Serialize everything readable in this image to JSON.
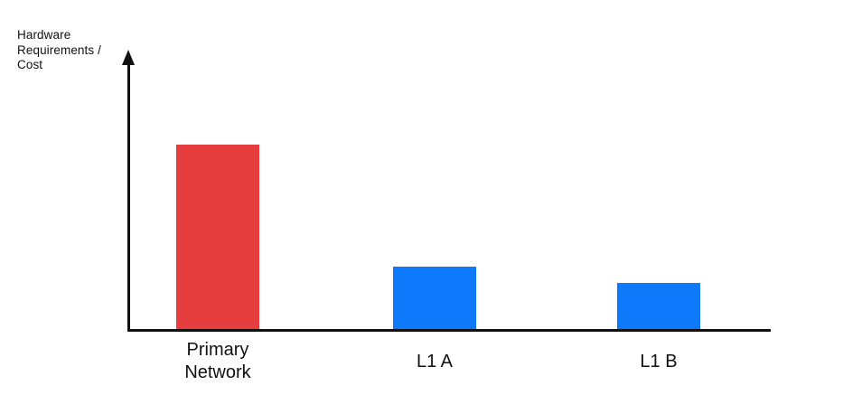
{
  "chart_data": {
    "type": "bar",
    "title": "",
    "xlabel": "",
    "ylabel": "Hardware Requirements / Cost",
    "categories": [
      "Primary Network",
      "L1 A",
      "L1 B"
    ],
    "values": [
      100,
      34,
      25
    ],
    "ylim": [
      0,
      100
    ],
    "grid": false,
    "legend": false,
    "axis_color": "#111111",
    "text_color": "#111111",
    "bars": [
      {
        "label": "Primary Network",
        "value": 100,
        "color": "#e63e3e"
      },
      {
        "label": "L1 A",
        "value": 34,
        "color": "#0e7afb"
      },
      {
        "label": "L1 B",
        "value": 25,
        "color": "#0e7afb"
      }
    ]
  }
}
